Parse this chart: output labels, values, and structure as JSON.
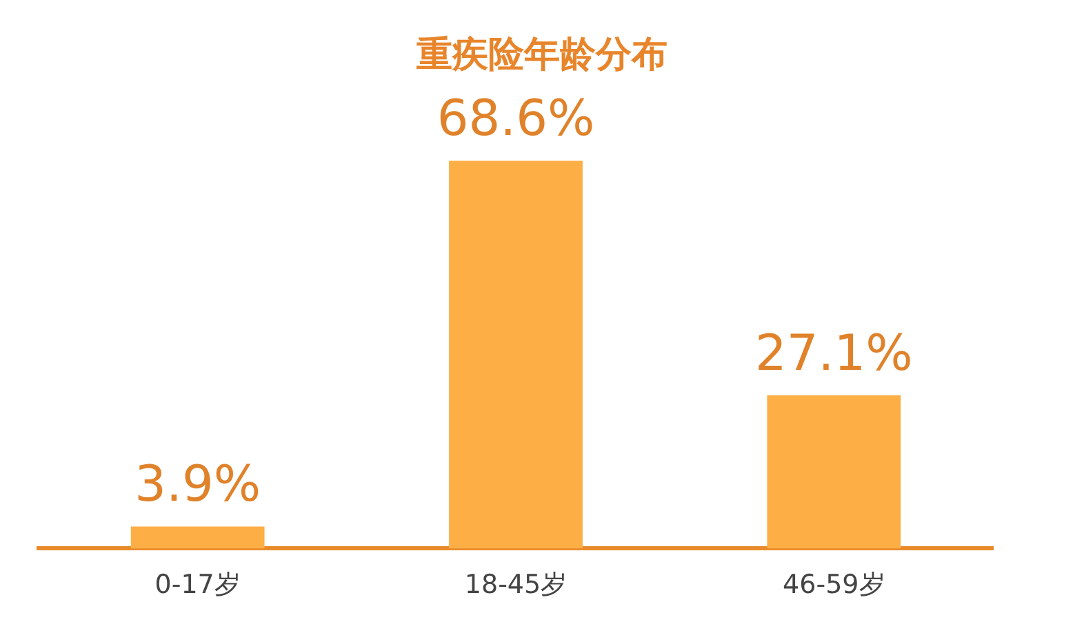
{
  "chart_data": {
    "type": "bar",
    "title": "重疾险年龄分布",
    "categories": [
      "0-17岁",
      "18-45岁",
      "46-59岁"
    ],
    "values": [
      3.9,
      68.6,
      27.1
    ],
    "value_labels": [
      "3.9%",
      "68.6%",
      "27.1%"
    ],
    "color": "#fdae45",
    "grid": false,
    "legend": false
  }
}
